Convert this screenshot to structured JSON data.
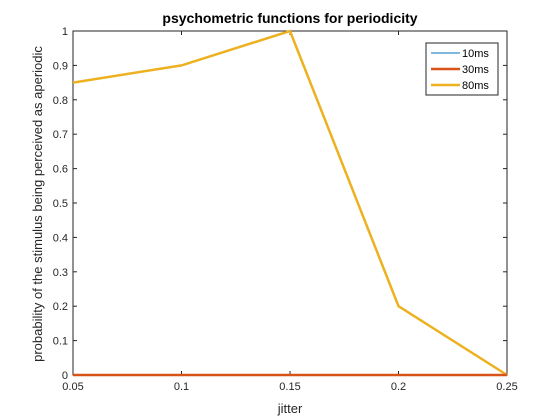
{
  "chart_data": {
    "type": "line",
    "title": "psychometric  functions for periodicity",
    "xlabel": "jitter",
    "ylabel": "probability of the stimulus being perceived as aperiodic",
    "xlim": [
      0.05,
      0.25
    ],
    "ylim": [
      0,
      1
    ],
    "xticks": [
      "0.05",
      "0.1",
      "0.15",
      "0.2",
      "0.25"
    ],
    "yticks": [
      "0",
      "0.1",
      "0.2",
      "0.3",
      "0.4",
      "0.5",
      "0.6",
      "0.7",
      "0.8",
      "0.9",
      "1"
    ],
    "grid": false,
    "legend_position": "top-right",
    "series": [
      {
        "name": "10ms",
        "color": "#0072BD",
        "x": [
          0.05,
          0.1,
          0.15,
          0.2,
          0.25
        ],
        "values": [
          0,
          0,
          0,
          0,
          0
        ]
      },
      {
        "name": "30ms",
        "color": "#D95319",
        "x": [
          0.05,
          0.1,
          0.15,
          0.2,
          0.25
        ],
        "values": [
          0,
          0,
          0,
          0,
          0
        ]
      },
      {
        "name": "80ms",
        "color": "#EDB120",
        "x": [
          0.05,
          0.1,
          0.15,
          0.2,
          0.25
        ],
        "values": [
          0.85,
          0.9,
          1.0,
          0.2,
          0
        ]
      }
    ]
  }
}
